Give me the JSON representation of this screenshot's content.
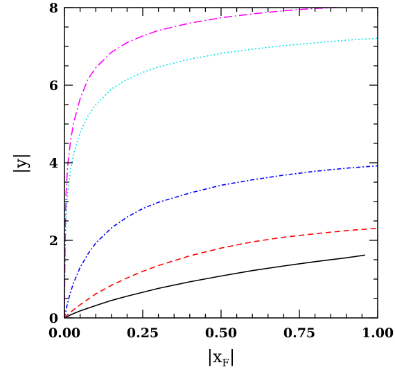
{
  "chart_data": {
    "type": "line",
    "title": "",
    "xlabel": "|x",
    "xlabel_sub": "F",
    "xlabel_close": "|",
    "ylabel": "|y|",
    "xlim": [
      0,
      1
    ],
    "ylim": [
      0,
      8
    ],
    "grid": false,
    "legend": "none",
    "x_ticks": [
      0,
      0.25,
      0.5,
      0.75,
      1.0
    ],
    "x_tick_labels": [
      "0.00",
      "0.25",
      "0.50",
      "0.75",
      "1.00"
    ],
    "y_ticks": [
      0,
      2,
      4,
      6,
      8
    ],
    "y_tick_labels": [
      "0",
      "2",
      "4",
      "6",
      "8"
    ],
    "series": [
      {
        "color": "#000000",
        "dash": "solid",
        "x": [
          0.0,
          0.005,
          0.02,
          0.05,
          0.1,
          0.15,
          0.2,
          0.25,
          0.3,
          0.4,
          0.5,
          0.6,
          0.7,
          0.8,
          0.9,
          0.96
        ],
        "y": [
          0.0,
          0.02,
          0.08,
          0.18,
          0.32,
          0.45,
          0.56,
          0.66,
          0.76,
          0.93,
          1.08,
          1.22,
          1.34,
          1.45,
          1.55,
          1.62
        ]
      },
      {
        "color": "#ff0000",
        "dash": "8 5",
        "x": [
          0.0,
          0.005,
          0.01,
          0.02,
          0.05,
          0.1,
          0.15,
          0.2,
          0.25,
          0.3,
          0.4,
          0.5,
          0.6,
          0.7,
          0.8,
          0.9,
          1.0
        ],
        "y": [
          0.0,
          0.04,
          0.08,
          0.15,
          0.34,
          0.62,
          0.84,
          1.03,
          1.2,
          1.35,
          1.6,
          1.8,
          1.96,
          2.08,
          2.17,
          2.25,
          2.31
        ]
      },
      {
        "color": "#0000ff",
        "dash": "6 3 2 3",
        "x": [
          0.0,
          0.005,
          0.01,
          0.02,
          0.03,
          0.05,
          0.075,
          0.1,
          0.15,
          0.2,
          0.25,
          0.3,
          0.4,
          0.5,
          0.6,
          0.7,
          0.8,
          0.9,
          1.0
        ],
        "y": [
          0.0,
          0.2,
          0.38,
          0.68,
          0.92,
          1.3,
          1.65,
          1.93,
          2.32,
          2.6,
          2.82,
          2.98,
          3.22,
          3.42,
          3.56,
          3.68,
          3.78,
          3.86,
          3.92
        ]
      },
      {
        "color": "#00e5ee",
        "dash": "2 3",
        "x": [
          0.0,
          0.001,
          0.003,
          0.005,
          0.01,
          0.02,
          0.03,
          0.05,
          0.075,
          0.1,
          0.15,
          0.2,
          0.25,
          0.3,
          0.4,
          0.5,
          0.6,
          0.7,
          0.8,
          0.9,
          1.0
        ],
        "y": [
          0.0,
          0.8,
          1.9,
          2.6,
          3.2,
          3.85,
          4.25,
          4.78,
          5.2,
          5.5,
          5.9,
          6.15,
          6.33,
          6.47,
          6.67,
          6.82,
          6.93,
          7.02,
          7.09,
          7.16,
          7.21
        ]
      },
      {
        "color": "#ff00ff",
        "dash": "12 4 2 4",
        "x": [
          0.0,
          0.001,
          0.003,
          0.005,
          0.01,
          0.02,
          0.03,
          0.05,
          0.075,
          0.1,
          0.15,
          0.2,
          0.25,
          0.3,
          0.4,
          0.5,
          0.6,
          0.7,
          0.8,
          0.87
        ],
        "y": [
          0.0,
          1.2,
          2.5,
          3.2,
          3.9,
          4.6,
          5.05,
          5.65,
          6.15,
          6.45,
          6.85,
          7.1,
          7.27,
          7.41,
          7.6,
          7.74,
          7.84,
          7.92,
          7.98,
          8.0
        ]
      }
    ]
  }
}
